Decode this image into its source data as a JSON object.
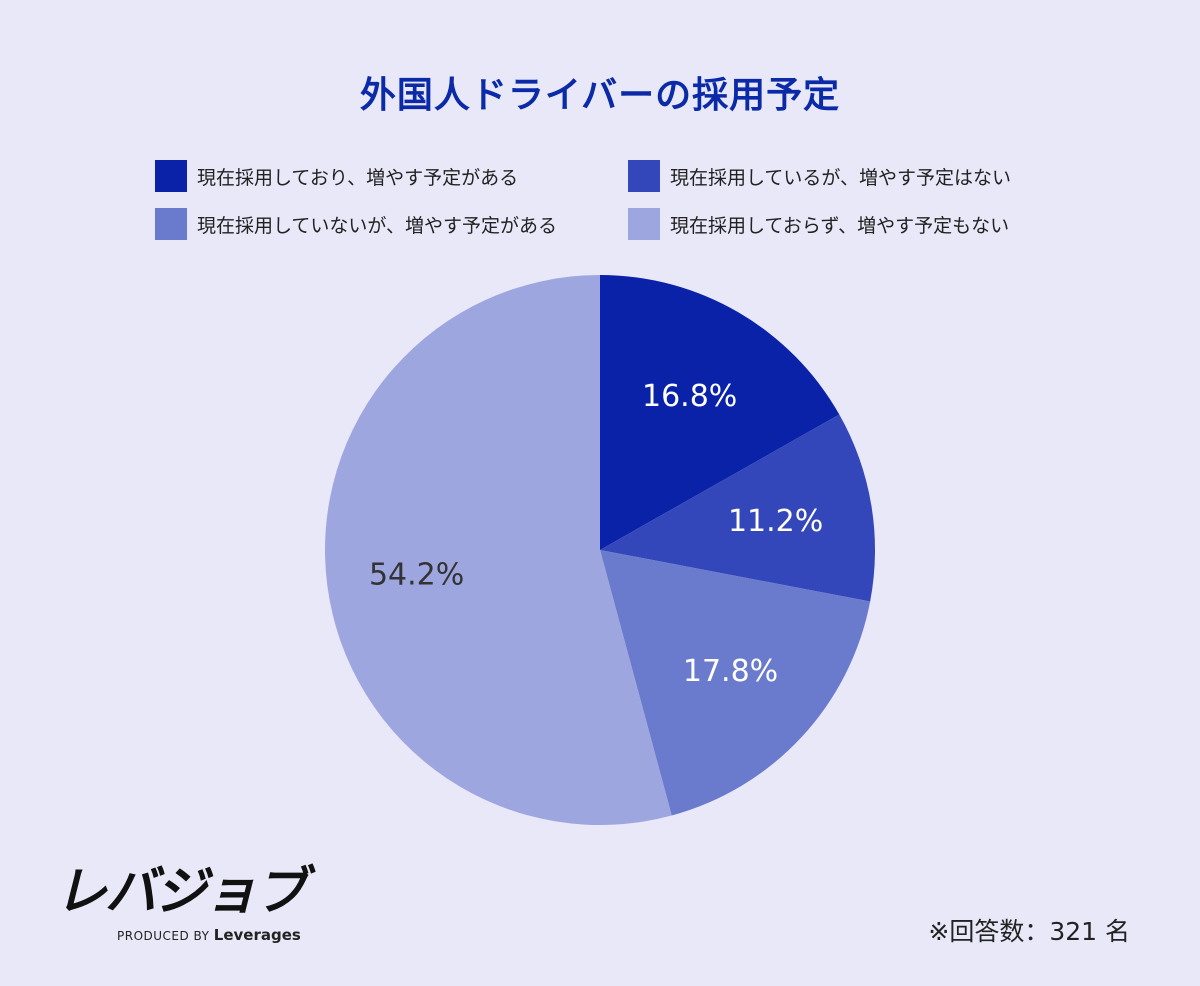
{
  "chart_data": {
    "type": "pie",
    "title": "外国人ドライバーの採用予定",
    "categories": [
      "現在採用しており、増やす予定がある",
      "現在採用しているが、増やす予定はない",
      "現在採用していないが、増やす予定がある",
      "現在採用しておらず、増やす予定もない"
    ],
    "values": [
      16.8,
      11.2,
      17.8,
      54.2
    ],
    "labels": [
      "16.8%",
      "11.2%",
      "17.8%",
      "54.2%"
    ],
    "colors": [
      "#0a22a8",
      "#3447ba",
      "#6a7bcd",
      "#9ea6e0"
    ],
    "label_colors": [
      "#ffffff",
      "#ffffff",
      "#ffffff",
      "#333333"
    ],
    "legend": "top"
  },
  "brand": {
    "logo": "レバジョブ",
    "produced_by": "PRODUCED BY",
    "company": "Leverages"
  },
  "note": "※回答数：321 名"
}
